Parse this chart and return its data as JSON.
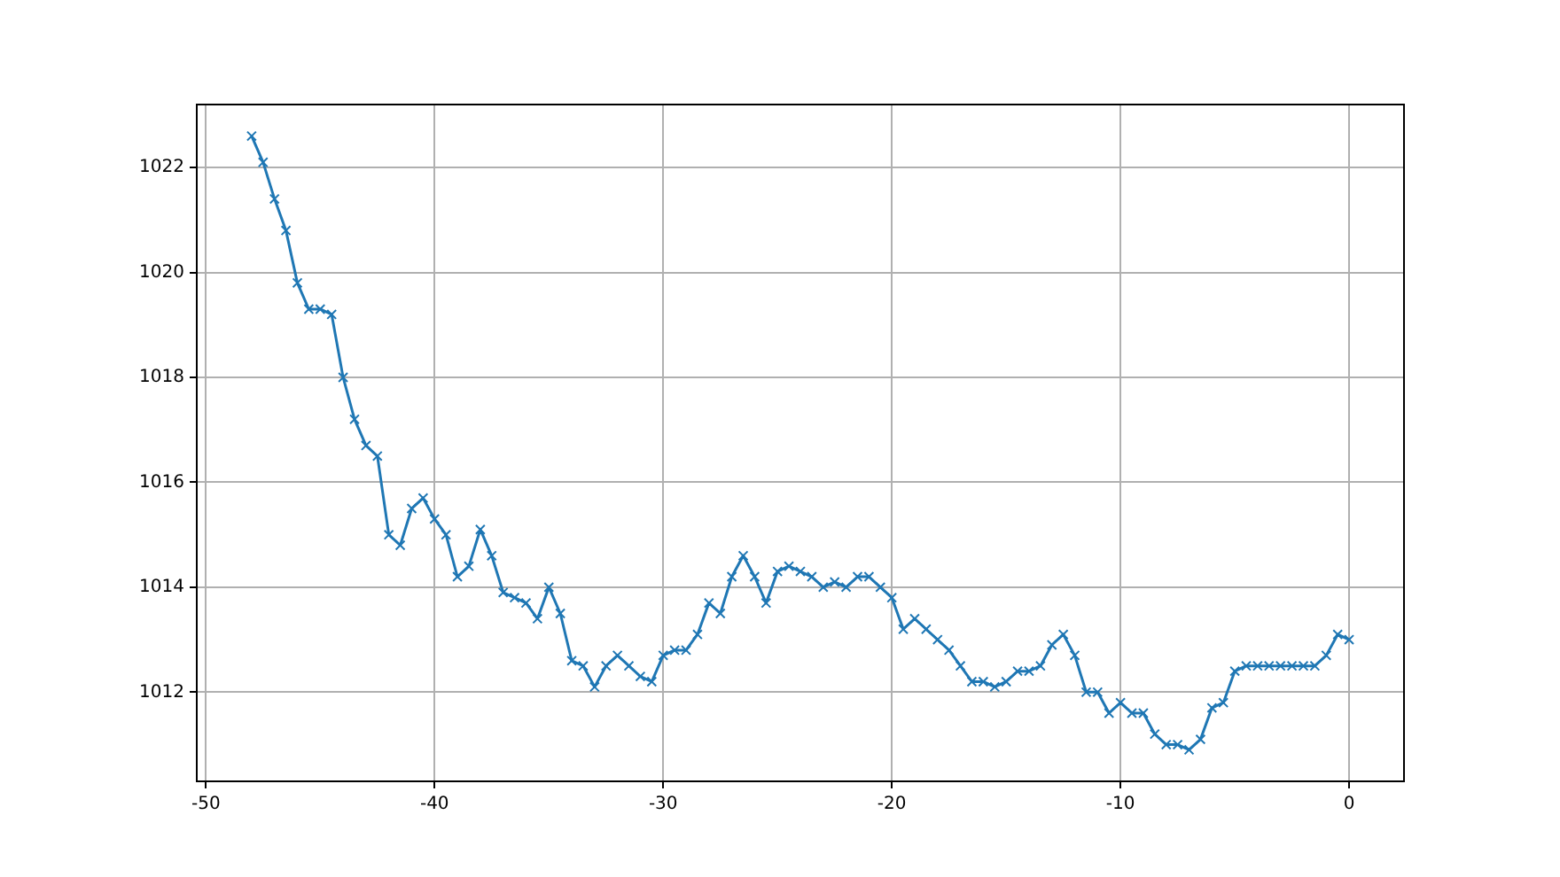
{
  "chart_data": {
    "type": "line",
    "x": [
      -48,
      -47.5,
      -47,
      -46.5,
      -46,
      -45.5,
      -45,
      -44.5,
      -44,
      -43.5,
      -43,
      -42.5,
      -42,
      -41.5,
      -41,
      -40.5,
      -40,
      -39.5,
      -39,
      -38.5,
      -38,
      -37.5,
      -37,
      -36.5,
      -36,
      -35.5,
      -35,
      -34.5,
      -34,
      -33.5,
      -33,
      -32.5,
      -32,
      -31.5,
      -31,
      -30.5,
      -30,
      -29.5,
      -29,
      -28.5,
      -28,
      -27.5,
      -27,
      -26.5,
      -26,
      -25.5,
      -25,
      -24.5,
      -24,
      -23.5,
      -23,
      -22.5,
      -22,
      -21.5,
      -21,
      -20.5,
      -20,
      -19.5,
      -19,
      -18.5,
      -18,
      -17.5,
      -17,
      -16.5,
      -16,
      -15.5,
      -15,
      -14.5,
      -14,
      -13.5,
      -13,
      -12.5,
      -12,
      -11.5,
      -11,
      -10.5,
      -10,
      -9.5,
      -9,
      -8.5,
      -8,
      -7.5,
      -7,
      -6.5,
      -6,
      -5.5,
      -5,
      -4.5,
      -4,
      -3.5,
      -3,
      -2.5,
      -2,
      -1.5,
      -1,
      -0.5,
      0
    ],
    "series": [
      {
        "color": "#1f77b4",
        "values": [
          1022.6,
          1022.1,
          1021.4,
          1020.8,
          1019.8,
          1019.3,
          1019.3,
          1019.2,
          1018.0,
          1017.2,
          1016.7,
          1016.5,
          1015.0,
          1014.8,
          1015.5,
          1015.7,
          1015.3,
          1015.0,
          1014.2,
          1014.4,
          1015.1,
          1014.6,
          1013.9,
          1013.8,
          1013.7,
          1013.4,
          1014.0,
          1013.5,
          1012.6,
          1012.5,
          1012.1,
          1012.5,
          1012.7,
          1012.5,
          1012.3,
          1012.2,
          1012.7,
          1012.8,
          1012.8,
          1013.1,
          1013.7,
          1013.5,
          1014.2,
          1014.6,
          1014.2,
          1013.7,
          1014.3,
          1014.4,
          1014.3,
          1014.2,
          1014.0,
          1014.1,
          1014.0,
          1014.2,
          1014.2,
          1014.0,
          1013.8,
          1013.2,
          1013.4,
          1013.2,
          1013.0,
          1012.8,
          1012.5,
          1012.2,
          1012.2,
          1012.1,
          1012.2,
          1012.4,
          1012.4,
          1012.5,
          1012.9,
          1013.1,
          1012.7,
          1012.0,
          1012.0,
          1011.6,
          1011.8,
          1011.6,
          1011.6,
          1011.2,
          1011.0,
          1011.0,
          1010.9,
          1011.1,
          1011.7,
          1011.8,
          1012.4,
          1012.5,
          1012.5,
          1012.5,
          1012.5,
          1012.5,
          1012.5,
          1012.5,
          1012.7,
          1013.1,
          1013.0
        ]
      }
    ],
    "xlim": [
      -50.4,
      2.4
    ],
    "xticks": [
      -50,
      -40,
      -30,
      -20,
      -10,
      0
    ],
    "ylim": [
      1010.3,
      1023.2
    ],
    "yticks": [
      1012,
      1014,
      1016,
      1018,
      1020,
      1022
    ],
    "grid": true,
    "marker": "cross",
    "line_style": "solid"
  }
}
